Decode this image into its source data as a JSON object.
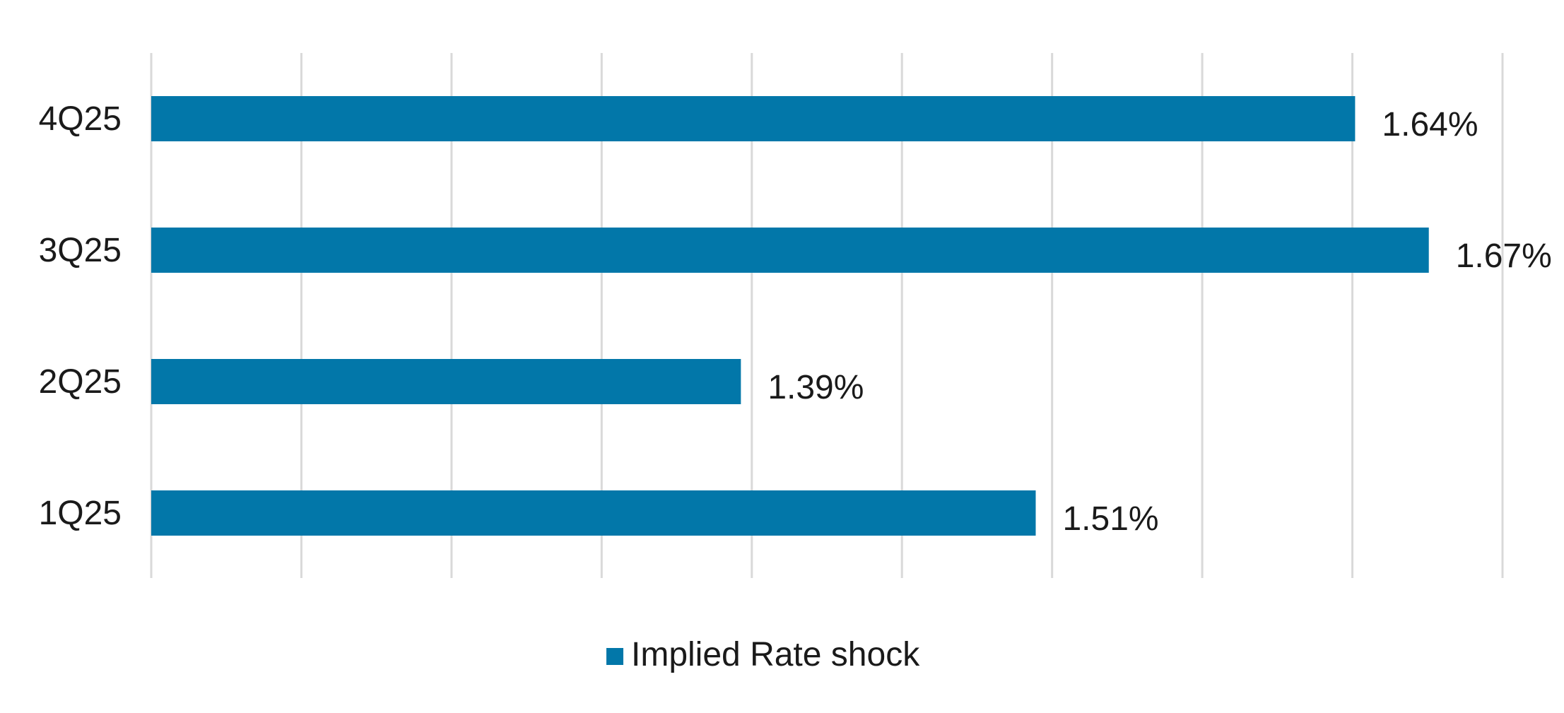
{
  "chart_data": {
    "type": "bar",
    "orientation": "horizontal",
    "categories": [
      "4Q25",
      "3Q25",
      "2Q25",
      "1Q25"
    ],
    "series": [
      {
        "name": "Implied Rate shock",
        "values": [
          1.64,
          1.67,
          1.39,
          1.51
        ],
        "labels": [
          "1.64%",
          "1.67%",
          "1.39%",
          "1.51%"
        ],
        "color": "#0277A9"
      }
    ],
    "xlim": [
      1.15,
      1.7
    ],
    "grid": true,
    "gridline_color": "#d9d9d9",
    "legend_position": "bottom",
    "title": "",
    "xlabel": "",
    "ylabel": ""
  }
}
